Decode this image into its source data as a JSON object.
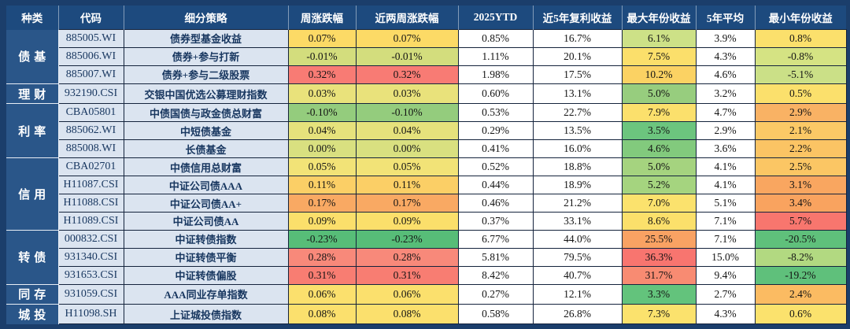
{
  "theme": {
    "outer_bg": "#1b3e6b",
    "header_bg": "#1d4a7e",
    "category_bg": "#2a5689",
    "light_cell_bg": "#dbe4f0",
    "grid_dark": "#14233c",
    "grid_light": "#e9eef6",
    "navy_text": "#17365f",
    "color_scale_red": "#f8736f",
    "color_scale_yellow": "#fbe06c",
    "color_scale_green": "#57bd78"
  },
  "chart_data": {
    "type": "table",
    "columns": [
      "种类",
      "代码",
      "细分策略",
      "周涨跌幅",
      "近两周涨跌幅",
      "2025YTD",
      "近5年复利收益",
      "最大年份收益",
      "5年平均",
      "最小年份收益"
    ],
    "groups": [
      {
        "label": "债基",
        "rows": 3
      },
      {
        "label": "理财",
        "rows": 1
      },
      {
        "label": "利率",
        "rows": 3
      },
      {
        "label": "信用",
        "rows": 4
      },
      {
        "label": "转债",
        "rows": 3
      },
      {
        "label": "同存",
        "rows": 1
      },
      {
        "label": "城投",
        "rows": 1
      }
    ],
    "rows": [
      {
        "code": "885005.WI",
        "strategy": "债券型基金收益",
        "week": {
          "v": "0.07%",
          "bg": "#fcda66"
        },
        "two_week": {
          "v": "0.07%",
          "bg": "#fcda66"
        },
        "ytd": "0.85%",
        "compound_5y": "16.7%",
        "max_year": {
          "v": "6.1%",
          "bg": "#cde187"
        },
        "avg_5y": "3.9%",
        "min_year": {
          "v": "0.8%",
          "bg": "#fbe06c"
        }
      },
      {
        "code": "885006.WI",
        "strategy": "债券+参与打新",
        "week": {
          "v": "-0.01%",
          "bg": "#d3dd7d"
        },
        "two_week": {
          "v": "-0.01%",
          "bg": "#d3dd7d"
        },
        "ytd": "1.11%",
        "compound_5y": "20.1%",
        "max_year": {
          "v": "7.5%",
          "bg": "#fbdf6b"
        },
        "avg_5y": "4.3%",
        "min_year": {
          "v": "-0.8%",
          "bg": "#d5e383"
        }
      },
      {
        "code": "885007.WI",
        "strategy": "债券+参与二级股票",
        "week": {
          "v": "0.32%",
          "bg": "#f87b74"
        },
        "two_week": {
          "v": "0.32%",
          "bg": "#f87b74"
        },
        "ytd": "1.98%",
        "compound_5y": "17.5%",
        "max_year": {
          "v": "10.2%",
          "bg": "#fbd263"
        },
        "avg_5y": "4.6%",
        "min_year": {
          "v": "-5.1%",
          "bg": "#cbe087"
        }
      },
      {
        "code": "932190.CSI",
        "strategy": "交银中国优选公募理财指数",
        "week": {
          "v": "0.03%",
          "bg": "#e9e27b"
        },
        "two_week": {
          "v": "0.03%",
          "bg": "#e9e27b"
        },
        "ytd": "0.60%",
        "compound_5y": "13.1%",
        "max_year": {
          "v": "5.0%",
          "bg": "#97cd7e"
        },
        "avg_5y": "3.2%",
        "min_year": {
          "v": "0.5%",
          "bg": "#fbe06c"
        }
      },
      {
        "code": "CBA05801",
        "strategy": "中债国债与政金债总财富",
        "week": {
          "v": "-0.10%",
          "bg": "#94cc7d"
        },
        "two_week": {
          "v": "-0.10%",
          "bg": "#94cc7d"
        },
        "ytd": "0.53%",
        "compound_5y": "22.7%",
        "max_year": {
          "v": "7.9%",
          "bg": "#fbe06c"
        },
        "avg_5y": "4.7%",
        "min_year": {
          "v": "2.9%",
          "bg": "#f9b264"
        }
      },
      {
        "code": "885062.WI",
        "strategy": "中短债基金",
        "week": {
          "v": "0.04%",
          "bg": "#e6e27c"
        },
        "two_week": {
          "v": "0.04%",
          "bg": "#e6e27c"
        },
        "ytd": "0.29%",
        "compound_5y": "13.5%",
        "max_year": {
          "v": "3.5%",
          "bg": "#6cc57e"
        },
        "avg_5y": "2.9%",
        "min_year": {
          "v": "2.1%",
          "bg": "#fbc966"
        }
      },
      {
        "code": "885008.WI",
        "strategy": "长债基金",
        "week": {
          "v": "0.00%",
          "bg": "#d9e080"
        },
        "two_week": {
          "v": "0.00%",
          "bg": "#d9e080"
        },
        "ytd": "0.41%",
        "compound_5y": "16.0%",
        "max_year": {
          "v": "4.6%",
          "bg": "#82ca7d"
        },
        "avg_5y": "3.6%",
        "min_year": {
          "v": "2.2%",
          "bg": "#fbc464"
        }
      },
      {
        "code": "CBA02701",
        "strategy": "中债信用总财富",
        "week": {
          "v": "0.05%",
          "bg": "#f2e377"
        },
        "two_week": {
          "v": "0.05%",
          "bg": "#f2e377"
        },
        "ytd": "0.52%",
        "compound_5y": "18.8%",
        "max_year": {
          "v": "5.0%",
          "bg": "#a5d37f"
        },
        "avg_5y": "4.1%",
        "min_year": {
          "v": "2.5%",
          "bg": "#fbc664"
        }
      },
      {
        "code": "H11087.CSI",
        "strategy": "中证公司债AAA",
        "week": {
          "v": "0.11%",
          "bg": "#fbcf66"
        },
        "two_week": {
          "v": "0.11%",
          "bg": "#fbcf66"
        },
        "ytd": "0.44%",
        "compound_5y": "18.9%",
        "max_year": {
          "v": "5.2%",
          "bg": "#a5d47f"
        },
        "avg_5y": "4.1%",
        "min_year": {
          "v": "3.1%",
          "bg": "#f9a660"
        }
      },
      {
        "code": "H11088.CSI",
        "strategy": "中证公司债AA+",
        "week": {
          "v": "0.17%",
          "bg": "#f9a963"
        },
        "two_week": {
          "v": "0.17%",
          "bg": "#f9a963"
        },
        "ytd": "0.46%",
        "compound_5y": "21.2%",
        "max_year": {
          "v": "7.0%",
          "bg": "#fbe26d"
        },
        "avg_5y": "5.1%",
        "min_year": {
          "v": "3.4%",
          "bg": "#f9a35f"
        }
      },
      {
        "code": "H11089.CSI",
        "strategy": "中证公司债AA",
        "week": {
          "v": "0.09%",
          "bg": "#fbdf6b"
        },
        "two_week": {
          "v": "0.09%",
          "bg": "#fbdf6b"
        },
        "ytd": "0.37%",
        "compound_5y": "33.1%",
        "max_year": {
          "v": "8.6%",
          "bg": "#fbe06b"
        },
        "avg_5y": "7.1%",
        "min_year": {
          "v": "5.7%",
          "bg": "#f8766e"
        }
      },
      {
        "code": "000832.CSI",
        "strategy": "中证转债指数",
        "week": {
          "v": "-0.23%",
          "bg": "#57bd78"
        },
        "two_week": {
          "v": "-0.23%",
          "bg": "#57bd78"
        },
        "ytd": "6.77%",
        "compound_5y": "44.0%",
        "max_year": {
          "v": "25.5%",
          "bg": "#f9a263"
        },
        "avg_5y": "7.1%",
        "min_year": {
          "v": "-20.5%",
          "bg": "#5fc07b"
        }
      },
      {
        "code": "931340.CSI",
        "strategy": "中证转债平衡",
        "week": {
          "v": "0.28%",
          "bg": "#f8897a"
        },
        "two_week": {
          "v": "0.28%",
          "bg": "#f8897a"
        },
        "ytd": "5.81%",
        "compound_5y": "79.5%",
        "max_year": {
          "v": "36.3%",
          "bg": "#f8756f"
        },
        "avg_5y": "15.0%",
        "min_year": {
          "v": "-8.2%",
          "bg": "#b2d981"
        }
      },
      {
        "code": "931653.CSI",
        "strategy": "中证转债偏股",
        "week": {
          "v": "0.31%",
          "bg": "#f87d72"
        },
        "two_week": {
          "v": "0.31%",
          "bg": "#f87d72"
        },
        "ytd": "8.42%",
        "compound_5y": "40.7%",
        "max_year": {
          "v": "31.7%",
          "bg": "#f88b72"
        },
        "avg_5y": "9.4%",
        "min_year": {
          "v": "-19.2%",
          "bg": "#5fc07b"
        }
      },
      {
        "code": "931059.CSI",
        "strategy": "AAA同业存单指数",
        "week": {
          "v": "0.06%",
          "bg": "#fbe06d"
        },
        "two_week": {
          "v": "0.06%",
          "bg": "#fbe06d"
        },
        "ytd": "0.27%",
        "compound_5y": "12.1%",
        "max_year": {
          "v": "3.3%",
          "bg": "#63c37c"
        },
        "avg_5y": "2.7%",
        "min_year": {
          "v": "2.4%",
          "bg": "#fbbb62"
        }
      },
      {
        "code": "H11098.SH",
        "strategy": "上证城投债指数",
        "week": {
          "v": "0.08%",
          "bg": "#fbe06d"
        },
        "two_week": {
          "v": "0.08%",
          "bg": "#fbe06d"
        },
        "ytd": "0.58%",
        "compound_5y": "26.8%",
        "max_year": {
          "v": "7.3%",
          "bg": "#fbe26d"
        },
        "avg_5y": "4.3%",
        "min_year": {
          "v": "0.6%",
          "bg": "#fbe26d"
        }
      }
    ]
  }
}
